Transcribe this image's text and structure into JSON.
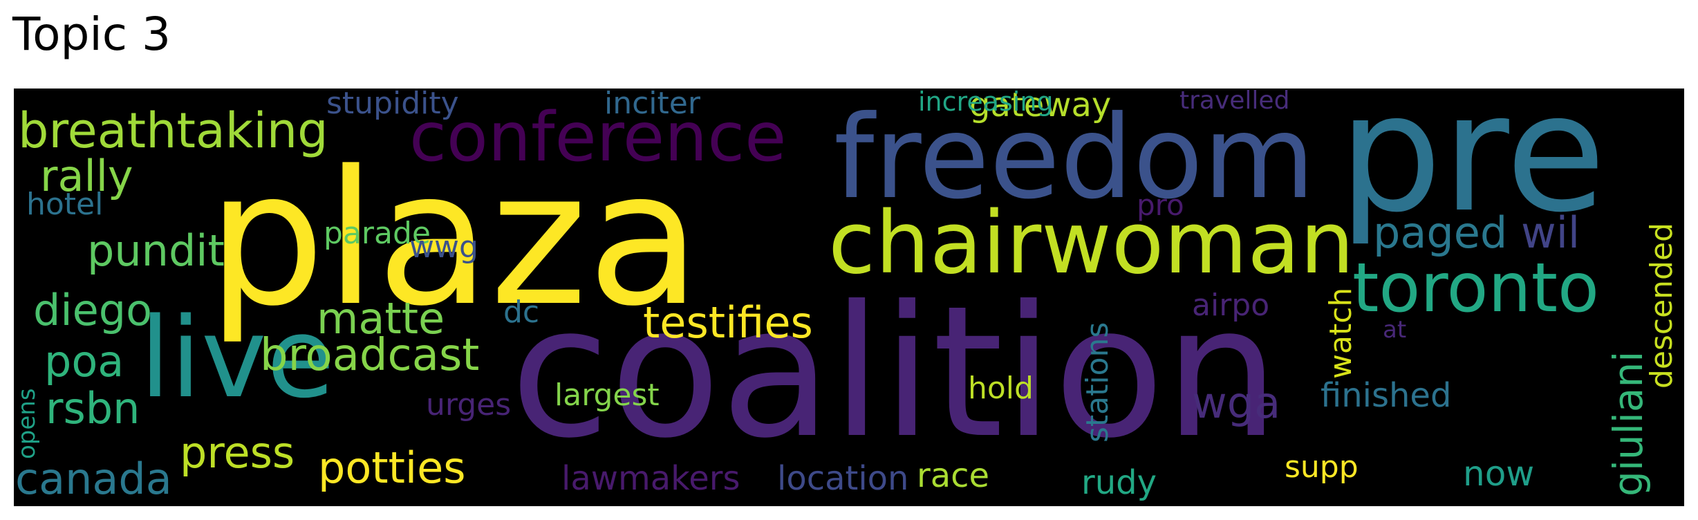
{
  "title": "Topic 3",
  "words": [
    {
      "text": "plaza",
      "color": "#fde725"
    },
    {
      "text": "coalition",
      "color": "#482475"
    },
    {
      "text": "pre",
      "color": "#2c728e"
    },
    {
      "text": "freedom",
      "color": "#3b528b"
    },
    {
      "text": "chairwoman",
      "color": "#c2df23"
    },
    {
      "text": "live",
      "color": "#21918c"
    },
    {
      "text": "conference",
      "color": "#440154"
    },
    {
      "text": "toronto",
      "color": "#22a884"
    },
    {
      "text": "breathtaking",
      "color": "#a0da39"
    },
    {
      "text": "testifies",
      "color": "#fde725"
    },
    {
      "text": "broadcast",
      "color": "#86d549"
    },
    {
      "text": "potties",
      "color": "#fde725"
    },
    {
      "text": "press",
      "color": "#bddf26"
    },
    {
      "text": "rally",
      "color": "#86d549"
    },
    {
      "text": "canada",
      "color": "#2a788e"
    },
    {
      "text": "diego",
      "color": "#4ac16d"
    },
    {
      "text": "matte",
      "color": "#7ad151"
    },
    {
      "text": "paged",
      "color": "#2a788e"
    },
    {
      "text": "wil",
      "color": "#414487"
    },
    {
      "text": "pundit",
      "color": "#5ec962"
    },
    {
      "text": "rsbn",
      "color": "#2fb47c"
    },
    {
      "text": "poa",
      "color": "#2fb47c"
    },
    {
      "text": "wga",
      "color": "#472c7a"
    },
    {
      "text": "now",
      "color": "#1f9e89"
    },
    {
      "text": "gateway",
      "color": "#b5de2b"
    },
    {
      "text": "stupidity",
      "color": "#3b528b"
    },
    {
      "text": "inciter",
      "color": "#31688e"
    },
    {
      "text": "travelled",
      "color": "#472c7a"
    },
    {
      "text": "increasing",
      "color": "#21a685"
    },
    {
      "text": "pro",
      "color": "#481a6c"
    },
    {
      "text": "hotel",
      "color": "#2c728e"
    },
    {
      "text": "parade",
      "color": "#5ec962"
    },
    {
      "text": "wwg",
      "color": "#3b528b"
    },
    {
      "text": "dc",
      "color": "#2c728e"
    },
    {
      "text": "airpo",
      "color": "#482475"
    },
    {
      "text": "urges",
      "color": "#482475"
    },
    {
      "text": "largest",
      "color": "#84d44b"
    },
    {
      "text": "hold",
      "color": "#bddf26"
    },
    {
      "text": "finished",
      "color": "#2c728e"
    },
    {
      "text": "lawmakers",
      "color": "#481a6c"
    },
    {
      "text": "location",
      "color": "#3e4a89"
    },
    {
      "text": "race",
      "color": "#aadc32"
    },
    {
      "text": "rudy",
      "color": "#22a884"
    },
    {
      "text": "supp",
      "color": "#fde725"
    },
    {
      "text": "at",
      "color": "#482878"
    },
    {
      "text": "stations",
      "color": "#2a788e"
    },
    {
      "text": "watch",
      "color": "#d8e219"
    },
    {
      "text": "giuliani",
      "color": "#35b779"
    },
    {
      "text": "descended",
      "color": "#c8e020"
    },
    {
      "text": "opens",
      "color": "#1fa187"
    }
  ]
}
